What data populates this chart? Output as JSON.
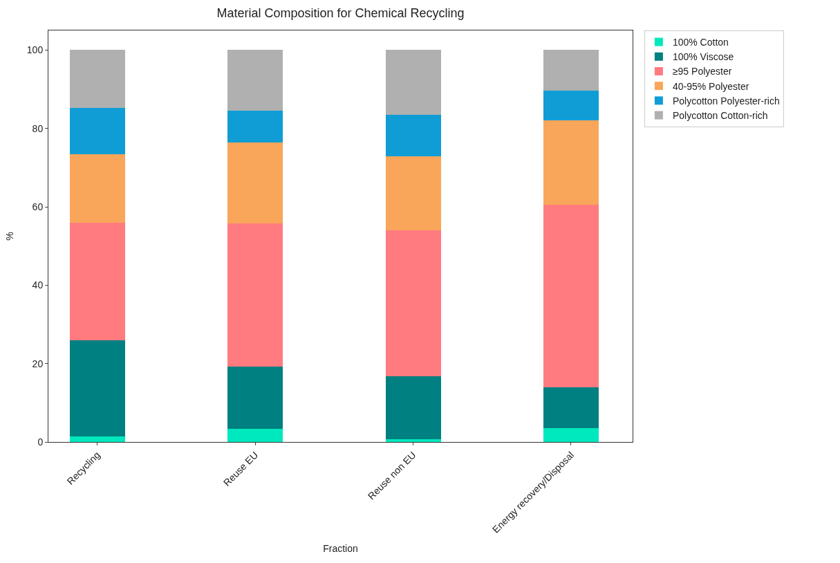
{
  "chart_data": {
    "type": "bar",
    "title": "Material Composition for Chemical Recycling",
    "xlabel": "Fraction",
    "ylabel": "%",
    "categories": [
      "Recycling",
      "Reuse EU",
      "Reuse non EU",
      "Energy recovery/Disposal"
    ],
    "stacked": true,
    "ylim": [
      0,
      105
    ],
    "yticks": [
      0,
      20,
      40,
      60,
      80,
      100
    ],
    "legend": "top right",
    "series": [
      {
        "name": "100% Cotton",
        "color": "#00e8bd",
        "values": [
          1.4,
          3.4,
          0.7,
          3.6
        ]
      },
      {
        "name": "100% Viscose",
        "color": "#008080",
        "values": [
          24.5,
          15.9,
          16.1,
          10.4
        ]
      },
      {
        "name": "≥95 Polyester",
        "color": "#ff7b80",
        "values": [
          30.0,
          36.4,
          37.2,
          46.6
        ]
      },
      {
        "name": "40-95% Polyester",
        "color": "#f9a65a",
        "values": [
          17.6,
          20.7,
          18.9,
          21.5
        ]
      },
      {
        "name": "Polycotton Polyester-rich",
        "color": "#109dd6",
        "values": [
          11.8,
          8.1,
          10.5,
          7.6
        ]
      },
      {
        "name": "Polycotton Cotton-rich",
        "color": "#b0b0b0",
        "values": [
          14.7,
          15.5,
          16.6,
          10.3
        ]
      }
    ]
  }
}
